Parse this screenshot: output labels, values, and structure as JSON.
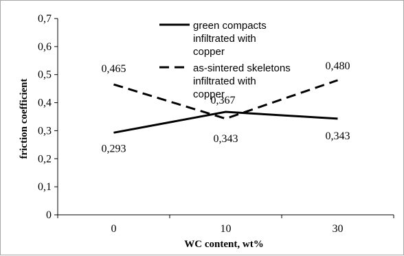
{
  "chart_data": {
    "type": "line",
    "categories": [
      "0",
      "10",
      "30"
    ],
    "xlabel": "WC  content, wt%",
    "ylabel": "friction coefficient",
    "ylim": [
      0,
      0.7
    ],
    "yticks": [
      "0",
      "0,1",
      "0,2",
      "0,3",
      "0,4",
      "0,5",
      "0,6",
      "0,7"
    ],
    "grid": false,
    "legend_position": "top-center",
    "series": [
      {
        "name": "green compacts infiltrated with copper",
        "legend_lines": [
          "green compacts",
          "infiltrated with",
          "copper"
        ],
        "values": [
          0.293,
          0.367,
          0.343
        ],
        "labels": [
          "0,293",
          "0,367",
          "0,343"
        ],
        "style": "solid",
        "color": "#000000"
      },
      {
        "name": "as-sintered skeletons infiltrated with copper",
        "legend_lines": [
          "as-sintered skeletons",
          "infiltrated with",
          "copper"
        ],
        "values": [
          0.465,
          0.343,
          0.48
        ],
        "labels": [
          "0,465",
          "0,343",
          "0,480"
        ],
        "style": "dashed",
        "color": "#000000"
      }
    ]
  }
}
